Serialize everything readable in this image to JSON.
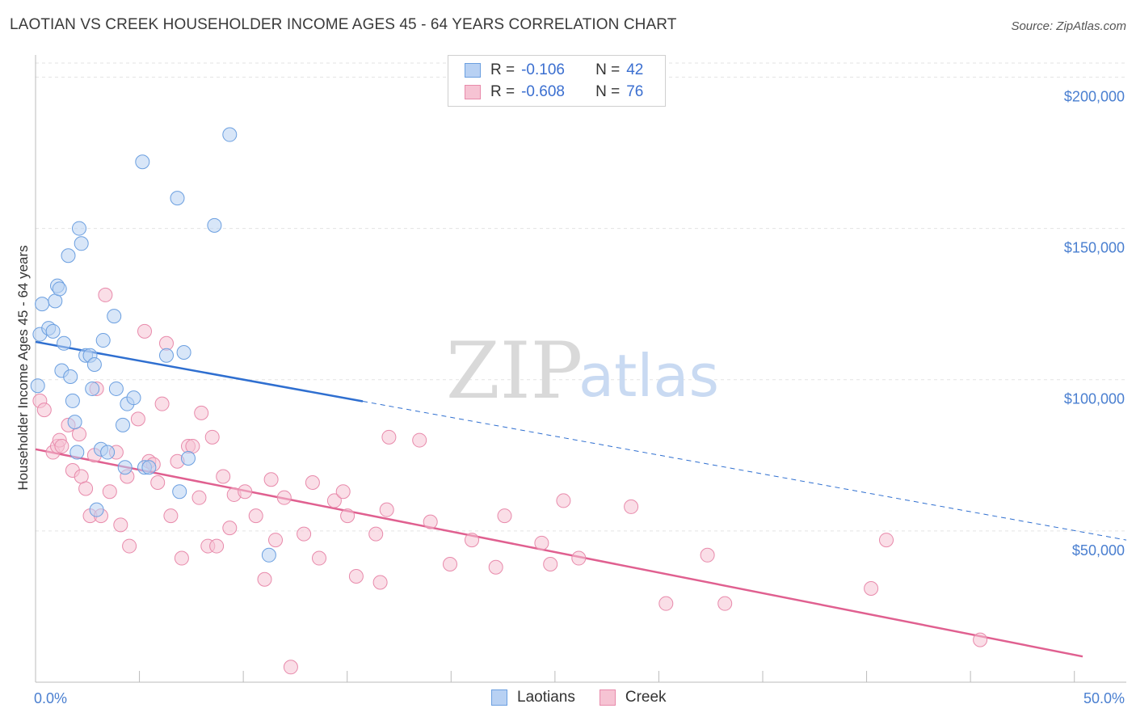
{
  "title": "LAOTIAN VS CREEK HOUSEHOLDER INCOME AGES 45 - 64 YEARS CORRELATION CHART",
  "source": "Source: ZipAtlas.com",
  "watermark": {
    "zip": "ZIP",
    "atlas": "atlas"
  },
  "colors": {
    "laotians": "#6b9fe0",
    "laotians_fill": "#b8d1f3",
    "creek": "#e88aab",
    "creek_fill": "#f6c3d3",
    "laotians_line": "#2f6fd0",
    "creek_line": "#e06090",
    "tick_text": "#4a7fd0"
  },
  "legend": {
    "r_label": "R =",
    "n_label": "N =",
    "rows": [
      {
        "series": "Laotians",
        "r": "-0.106",
        "n": "42"
      },
      {
        "series": "Creek",
        "r": "-0.608",
        "n": "76"
      }
    ]
  },
  "chart_data": {
    "type": "scatter",
    "title": "LAOTIAN VS CREEK HOUSEHOLDER INCOME AGES 45 - 64 YEARS CORRELATION CHART",
    "xlabel": "",
    "ylabel": "Householder Income Ages 45 - 64 years",
    "xlim": [
      0,
      50
    ],
    "ylim": [
      0,
      210000
    ],
    "x_tick_labels": [
      "0.0%",
      "50.0%"
    ],
    "y_ticks": [
      50000,
      100000,
      150000,
      200000
    ],
    "y_tick_labels": [
      "$50,000",
      "$100,000",
      "$150,000",
      "$200,000"
    ],
    "grid": "horizontal dashed",
    "legend_position": "top-center",
    "series": [
      {
        "name": "Laotians",
        "points": [
          [
            0.1,
            98000
          ],
          [
            0.2,
            115000
          ],
          [
            0.3,
            125000
          ],
          [
            0.6,
            117000
          ],
          [
            0.8,
            116000
          ],
          [
            0.9,
            126000
          ],
          [
            1.0,
            131000
          ],
          [
            1.1,
            130000
          ],
          [
            1.3,
            112000
          ],
          [
            1.2,
            103000
          ],
          [
            1.6,
            101000
          ],
          [
            1.5,
            141000
          ],
          [
            1.7,
            93000
          ],
          [
            1.8,
            86000
          ],
          [
            2.0,
            150000
          ],
          [
            2.1,
            145000
          ],
          [
            2.3,
            108000
          ],
          [
            2.5,
            108000
          ],
          [
            2.7,
            105000
          ],
          [
            2.6,
            97000
          ],
          [
            2.8,
            57000
          ],
          [
            3.0,
            77000
          ],
          [
            3.1,
            113000
          ],
          [
            3.3,
            76000
          ],
          [
            3.6,
            121000
          ],
          [
            3.7,
            97000
          ],
          [
            4.0,
            85000
          ],
          [
            4.2,
            92000
          ],
          [
            4.5,
            94000
          ],
          [
            4.9,
            172000
          ],
          [
            5.0,
            71000
          ],
          [
            5.2,
            71000
          ],
          [
            6.0,
            108000
          ],
          [
            6.5,
            160000
          ],
          [
            6.6,
            63000
          ],
          [
            6.8,
            109000
          ],
          [
            7.0,
            74000
          ],
          [
            8.2,
            151000
          ],
          [
            8.9,
            181000
          ],
          [
            10.7,
            42000
          ],
          [
            1.9,
            76000
          ],
          [
            4.1,
            71000
          ]
        ],
        "trend": {
          "x": [
            0,
            50
          ],
          "y": [
            112500,
            47000
          ]
        }
      },
      {
        "name": "Creek",
        "points": [
          [
            0.2,
            93000
          ],
          [
            0.4,
            90000
          ],
          [
            0.8,
            76000
          ],
          [
            1.0,
            78000
          ],
          [
            1.1,
            80000
          ],
          [
            1.2,
            78000
          ],
          [
            1.5,
            85000
          ],
          [
            1.7,
            70000
          ],
          [
            2.0,
            82000
          ],
          [
            2.1,
            68000
          ],
          [
            2.3,
            64000
          ],
          [
            2.5,
            55000
          ],
          [
            2.7,
            75000
          ],
          [
            2.8,
            97000
          ],
          [
            3.0,
            55000
          ],
          [
            3.2,
            128000
          ],
          [
            3.4,
            63000
          ],
          [
            3.7,
            76000
          ],
          [
            3.9,
            52000
          ],
          [
            4.2,
            68000
          ],
          [
            4.3,
            45000
          ],
          [
            4.7,
            87000
          ],
          [
            5.0,
            116000
          ],
          [
            5.2,
            73000
          ],
          [
            5.4,
            72000
          ],
          [
            5.6,
            66000
          ],
          [
            5.8,
            92000
          ],
          [
            6.0,
            112000
          ],
          [
            6.2,
            55000
          ],
          [
            6.5,
            73000
          ],
          [
            6.7,
            41000
          ],
          [
            7.0,
            78000
          ],
          [
            7.2,
            78000
          ],
          [
            7.5,
            61000
          ],
          [
            7.6,
            89000
          ],
          [
            7.9,
            45000
          ],
          [
            8.3,
            45000
          ],
          [
            8.1,
            81000
          ],
          [
            8.6,
            68000
          ],
          [
            8.9,
            51000
          ],
          [
            9.1,
            62000
          ],
          [
            9.6,
            63000
          ],
          [
            10.1,
            55000
          ],
          [
            10.5,
            34000
          ],
          [
            10.8,
            67000
          ],
          [
            11.0,
            47000
          ],
          [
            11.4,
            61000
          ],
          [
            11.7,
            5000
          ],
          [
            12.3,
            49000
          ],
          [
            12.7,
            66000
          ],
          [
            13.0,
            41000
          ],
          [
            13.7,
            60000
          ],
          [
            14.1,
            63000
          ],
          [
            14.3,
            55000
          ],
          [
            14.7,
            35000
          ],
          [
            15.6,
            49000
          ],
          [
            15.8,
            33000
          ],
          [
            16.1,
            57000
          ],
          [
            16.2,
            81000
          ],
          [
            17.6,
            80000
          ],
          [
            18.1,
            53000
          ],
          [
            19.0,
            39000
          ],
          [
            20.0,
            47000
          ],
          [
            21.1,
            38000
          ],
          [
            21.5,
            55000
          ],
          [
            23.2,
            46000
          ],
          [
            23.6,
            39000
          ],
          [
            24.2,
            60000
          ],
          [
            24.9,
            41000
          ],
          [
            27.3,
            58000
          ],
          [
            28.9,
            26000
          ],
          [
            30.8,
            42000
          ],
          [
            31.6,
            26000
          ],
          [
            38.3,
            31000
          ],
          [
            39.0,
            47000
          ],
          [
            43.3,
            14000
          ]
        ],
        "trend": {
          "x": [
            0,
            48
          ],
          "y": [
            77000,
            8500
          ]
        }
      }
    ]
  }
}
